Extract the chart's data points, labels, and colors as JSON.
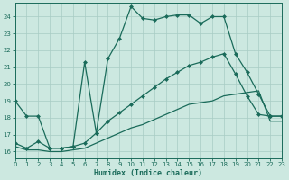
{
  "xlabel": "Humidex (Indice chaleur)",
  "bg_color": "#cce8e0",
  "grid_color": "#a8ccc4",
  "line_color": "#1a6b5a",
  "x_ticks": [
    0,
    1,
    2,
    3,
    4,
    5,
    6,
    7,
    8,
    9,
    10,
    11,
    12,
    13,
    14,
    15,
    16,
    17,
    18,
    19,
    20,
    21,
    22,
    23
  ],
  "y_ticks": [
    16,
    17,
    18,
    19,
    20,
    21,
    22,
    23,
    24
  ],
  "xlim": [
    0,
    23
  ],
  "ylim": [
    15.6,
    24.8
  ],
  "line1_x": [
    0,
    1,
    2,
    3,
    4,
    5,
    6,
    7,
    8,
    9,
    10,
    11,
    12,
    13,
    14,
    15,
    16,
    17,
    18,
    19,
    20,
    21,
    22,
    23
  ],
  "line1_y": [
    19.0,
    18.1,
    18.1,
    16.2,
    16.2,
    16.3,
    21.3,
    17.1,
    21.5,
    22.7,
    24.6,
    23.9,
    23.8,
    24.0,
    24.1,
    24.1,
    23.6,
    24.0,
    24.0,
    21.8,
    20.7,
    19.4,
    18.1,
    18.1
  ],
  "line2_x": [
    0,
    1,
    2,
    3,
    4,
    5,
    6,
    7,
    8,
    9,
    10,
    11,
    12,
    13,
    14,
    15,
    16,
    17,
    18,
    19,
    20,
    21,
    22,
    23
  ],
  "line2_y": [
    16.5,
    16.2,
    16.6,
    16.2,
    16.2,
    16.3,
    16.5,
    17.1,
    17.8,
    18.3,
    18.8,
    19.3,
    19.8,
    20.3,
    20.7,
    21.1,
    21.3,
    21.6,
    21.8,
    20.6,
    19.3,
    18.2,
    18.1,
    18.1
  ],
  "line3_x": [
    0,
    1,
    2,
    3,
    4,
    5,
    6,
    7,
    8,
    9,
    10,
    11,
    12,
    13,
    14,
    15,
    16,
    17,
    18,
    19,
    20,
    21,
    22,
    23
  ],
  "line3_y": [
    16.3,
    16.1,
    16.1,
    16.0,
    16.0,
    16.1,
    16.2,
    16.5,
    16.8,
    17.1,
    17.4,
    17.6,
    17.9,
    18.2,
    18.5,
    18.8,
    18.9,
    19.0,
    19.3,
    19.4,
    19.5,
    19.6,
    17.8,
    17.8
  ]
}
